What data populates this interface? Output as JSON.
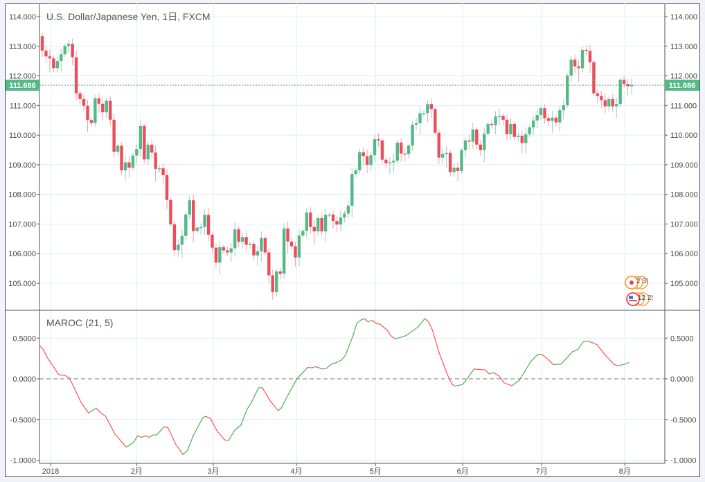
{
  "header": {
    "title": "U.S. Dollar/Japanese Yen, 1日, FXCM"
  },
  "indicator": {
    "title": "MAROC (21, 5)"
  },
  "colors": {
    "up": "#53b987",
    "down": "#eb4d5c",
    "up_wick": "#9cc9c4",
    "down_wick": "#f5a0a8",
    "maroc_up": "#4caf50",
    "maroc_down": "#ff5252",
    "grid": "#e3ecf3",
    "axis": "#555555"
  },
  "events": [
    {
      "label": "2 3!"
    },
    {
      "label": "12 2!"
    }
  ],
  "chart_data": [
    {
      "type": "candlestick",
      "title": "U.S. Dollar/Japanese Yen, 1日, FXCM",
      "ylim": [
        104.55,
        114.35
      ],
      "yticks": [
        "105.000",
        "106.000",
        "107.000",
        "108.000",
        "109.000",
        "110.000",
        "111.000",
        "112.000",
        "113.000",
        "114.000"
      ],
      "last_price": "111.686",
      "first_open": 113.34,
      "close": [
        112.85,
        112.66,
        112.59,
        112.26,
        112.5,
        112.73,
        113.01,
        113.08,
        112.63,
        111.41,
        111.22,
        110.99,
        110.51,
        110.41,
        111.24,
        111.06,
        110.77,
        111.16,
        110.52,
        109.44,
        109.64,
        108.81,
        109.08,
        108.9,
        109.31,
        109.53,
        110.31,
        109.18,
        109.68,
        109.41,
        108.86,
        108.88,
        108.65,
        107.81,
        106.99,
        106.12,
        106.3,
        106.6,
        107.32,
        107.8,
        106.76,
        106.88,
        106.9,
        107.31,
        106.64,
        106.2,
        105.7,
        106.22,
        106.11,
        106.04,
        106.18,
        106.82,
        106.4,
        106.56,
        106.3,
        106.33,
        105.94,
        106.08,
        106.52,
        106.04,
        105.27,
        104.7,
        105.4,
        105.32,
        106.85,
        106.41,
        106.25,
        105.87,
        106.61,
        106.77,
        107.39,
        106.9,
        106.75,
        107.2,
        106.75,
        107.31,
        107.32,
        107.1,
        106.98,
        107.22,
        107.35,
        107.62,
        108.69,
        108.81,
        109.42,
        109.29,
        109.0,
        109.32,
        109.86,
        109.82,
        109.17,
        109.05,
        109.08,
        109.14,
        109.75,
        109.38,
        109.36,
        109.65,
        110.35,
        110.4,
        110.74,
        110.74,
        111.05,
        110.88,
        110.08,
        109.24,
        109.37,
        109.4,
        108.75,
        108.9,
        108.79,
        109.49,
        109.82,
        109.78,
        110.19,
        109.68,
        109.49,
        110.05,
        110.38,
        110.34,
        110.63,
        110.65,
        110.52,
        110.03,
        110.38,
        109.94,
        109.98,
        109.73,
        110.03,
        110.26,
        110.49,
        110.68,
        110.91,
        110.57,
        110.48,
        110.59,
        110.43,
        110.84,
        111.01,
        112.01,
        112.55,
        112.32,
        112.26,
        112.88,
        112.84,
        112.46,
        111.41,
        111.32,
        111.18,
        110.97,
        111.22,
        110.97,
        111.05,
        111.87,
        111.73,
        111.65,
        111.69
      ],
      "xticks": [
        {
          "label": "2018",
          "x": 3.2
        },
        {
          "label": "2月",
          "x": 26.0
        },
        {
          "label": "3月",
          "x": 46.3
        },
        {
          "label": "4月",
          "x": 68.3
        },
        {
          "label": "5月",
          "x": 89.2
        },
        {
          "label": "6月",
          "x": 112.3
        },
        {
          "label": "7月",
          "x": 133.2
        },
        {
          "label": "8月",
          "x": 155.2
        }
      ]
    },
    {
      "type": "line",
      "title": "MAROC (21, 5)",
      "ylim": [
        -1.02,
        0.85
      ],
      "yticks": [
        {
          "v": 0.5,
          "label": "0.5000"
        },
        {
          "v": 0,
          "label": "0.0000"
        },
        {
          "v": -0.5,
          "label": "-0.5000"
        },
        {
          "v": -1,
          "label": "-1.0000"
        }
      ],
      "zero_line": 0,
      "points": [
        [
          1,
          0.41
        ],
        [
          2,
          0.36
        ],
        [
          3.1,
          0.26
        ],
        [
          5.4,
          0.1
        ],
        [
          6.1,
          0.05
        ],
        [
          7.8,
          0.04
        ],
        [
          9,
          0.005
        ],
        [
          12,
          -0.29
        ],
        [
          14,
          -0.42
        ],
        [
          16,
          -0.36
        ],
        [
          17,
          -0.41
        ],
        [
          18.5,
          -0.46
        ],
        [
          21,
          -0.68
        ],
        [
          24,
          -0.84
        ],
        [
          25.9,
          -0.78
        ],
        [
          27,
          -0.7
        ],
        [
          28,
          -0.72
        ],
        [
          29.2,
          -0.7
        ],
        [
          30,
          -0.72
        ],
        [
          31,
          -0.69
        ],
        [
          32,
          -0.69
        ],
        [
          34,
          -0.59
        ],
        [
          35,
          -0.6
        ],
        [
          37,
          -0.8
        ],
        [
          39,
          -0.93
        ],
        [
          40.2,
          -0.88
        ],
        [
          41.7,
          -0.7
        ],
        [
          44.2,
          -0.48
        ],
        [
          45,
          -0.46
        ],
        [
          46.3,
          -0.49
        ],
        [
          48,
          -0.64
        ],
        [
          50,
          -0.75
        ],
        [
          51,
          -0.76
        ],
        [
          52.7,
          -0.63
        ],
        [
          54.3,
          -0.57
        ],
        [
          56,
          -0.37
        ],
        [
          57,
          -0.3
        ],
        [
          59,
          -0.11
        ],
        [
          60,
          -0.11
        ],
        [
          62.2,
          -0.28
        ],
        [
          64.2,
          -0.39
        ],
        [
          65,
          -0.36
        ],
        [
          67,
          -0.18
        ],
        [
          69.2,
          0.005
        ],
        [
          72,
          0.14
        ],
        [
          73.2,
          0.135
        ],
        [
          74,
          0.15
        ],
        [
          76,
          0.12
        ],
        [
          77,
          0.13
        ],
        [
          78.3,
          0.18
        ],
        [
          79.6,
          0.2
        ],
        [
          80.9,
          0.23
        ],
        [
          82,
          0.29
        ],
        [
          83,
          0.41
        ],
        [
          84,
          0.53
        ],
        [
          85,
          0.68
        ],
        [
          86,
          0.72
        ],
        [
          87,
          0.74
        ],
        [
          88,
          0.7
        ],
        [
          89,
          0.72
        ],
        [
          90.2,
          0.68
        ],
        [
          91.2,
          0.67
        ],
        [
          93,
          0.6
        ],
        [
          94,
          0.53
        ],
        [
          95.2,
          0.49
        ],
        [
          98,
          0.53
        ],
        [
          99.8,
          0.59
        ],
        [
          101.3,
          0.64
        ],
        [
          103,
          0.74
        ],
        [
          104,
          0.7
        ],
        [
          105,
          0.6
        ],
        [
          106.8,
          0.32
        ],
        [
          109,
          0.05
        ],
        [
          110.2,
          -0.065
        ],
        [
          111,
          -0.09
        ],
        [
          113,
          -0.07
        ],
        [
          114.5,
          0.02
        ],
        [
          116,
          0.12
        ],
        [
          119,
          0.11
        ],
        [
          120,
          0.06
        ],
        [
          121.2,
          0.075
        ],
        [
          122.7,
          0.035
        ],
        [
          124,
          -0.05
        ],
        [
          126,
          -0.085
        ],
        [
          128,
          -0.02
        ],
        [
          131,
          0.21
        ],
        [
          132,
          0.26
        ],
        [
          133,
          0.3
        ],
        [
          134,
          0.3
        ],
        [
          135.5,
          0.245
        ],
        [
          137,
          0.175
        ],
        [
          139,
          0.18
        ],
        [
          140,
          0.225
        ],
        [
          142,
          0.33
        ],
        [
          143.5,
          0.36
        ],
        [
          145,
          0.46
        ],
        [
          146.5,
          0.46
        ],
        [
          148.6,
          0.42
        ],
        [
          150.4,
          0.31
        ],
        [
          153,
          0.18
        ],
        [
          154,
          0.16
        ],
        [
          156,
          0.18
        ],
        [
          157,
          0.2
        ]
      ]
    }
  ]
}
